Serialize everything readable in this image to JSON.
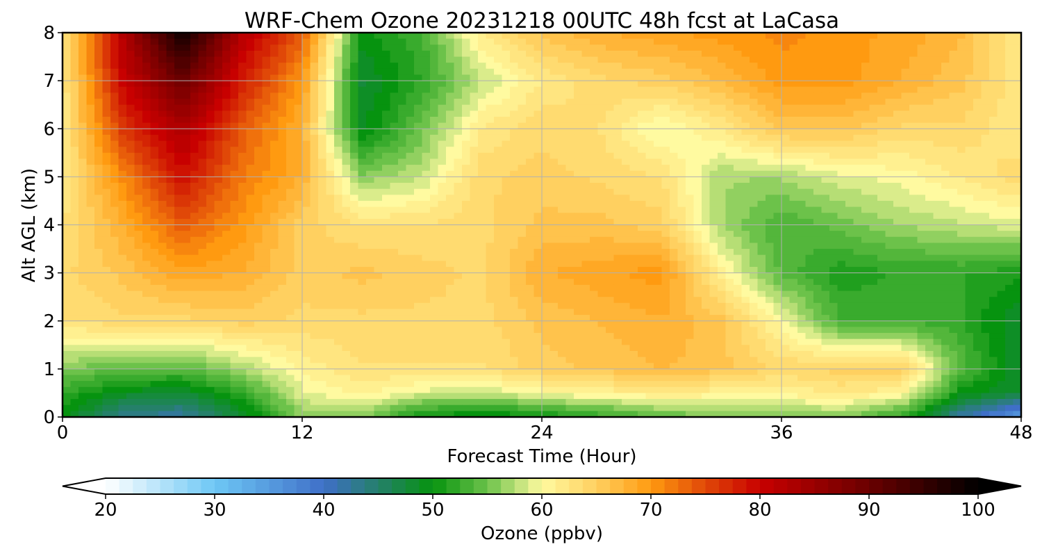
{
  "chart_data": {
    "type": "heatmap",
    "title": "WRF-Chem Ozone  20231218 00UTC 48h fcst at LaCasa",
    "xlabel": "Forecast Time (Hour)",
    "ylabel": "Alt AGL (km)",
    "xlim": [
      0,
      48
    ],
    "ylim": [
      0,
      8
    ],
    "x_ticks": [
      "0",
      "12",
      "24",
      "36",
      "48"
    ],
    "y_ticks": [
      "0",
      "1",
      "2",
      "3",
      "4",
      "5",
      "6",
      "7",
      "8"
    ],
    "grid": true,
    "x": [
      0,
      3,
      6,
      9,
      12,
      15,
      18,
      21,
      24,
      27,
      30,
      33,
      36,
      39,
      42,
      45,
      48
    ],
    "y": [
      0,
      0.5,
      1,
      2,
      3,
      4,
      5,
      6,
      7,
      8
    ],
    "z": [
      [
        50,
        43,
        42,
        48,
        56,
        56,
        50,
        49,
        50,
        52,
        54,
        56,
        56,
        56,
        52,
        42,
        34
      ],
      [
        52,
        49,
        48,
        52,
        59,
        61,
        59,
        58,
        60,
        61,
        62,
        61,
        61,
        62,
        61,
        50,
        48
      ],
      [
        56,
        54,
        54,
        57,
        61,
        63,
        63,
        63,
        65,
        66,
        67,
        66,
        64,
        65,
        65,
        54,
        48
      ],
      [
        63,
        64,
        64,
        65,
        64,
        64,
        64,
        64,
        66,
        67,
        68,
        66,
        60,
        53,
        53,
        52,
        48
      ],
      [
        64,
        66,
        69,
        68,
        65,
        66,
        65,
        64,
        68,
        69,
        70,
        61,
        54,
        51,
        52,
        52,
        51
      ],
      [
        63,
        68,
        74,
        70,
        65,
        63,
        63,
        64,
        66,
        66,
        65,
        57,
        53,
        55,
        57,
        58,
        59
      ],
      [
        62,
        71,
        79,
        72,
        68,
        56,
        58,
        64,
        65,
        64,
        63,
        57,
        57,
        59,
        60,
        62,
        64
      ],
      [
        62,
        76,
        83,
        74,
        68,
        49,
        55,
        62,
        64,
        63,
        59,
        62,
        66,
        66,
        64,
        64,
        62
      ],
      [
        62,
        80,
        90,
        78,
        70,
        48,
        52,
        58,
        62,
        64,
        65,
        67,
        70,
        70,
        68,
        66,
        62
      ],
      [
        63,
        82,
        99,
        82,
        74,
        50,
        53,
        62,
        66,
        68,
        69,
        70,
        71,
        70,
        69,
        67,
        62
      ]
    ],
    "colorbar": {
      "label": "Ozone  (ppbv)",
      "min": 20,
      "max": 100,
      "ticks": [
        "20",
        "30",
        "40",
        "50",
        "60",
        "70",
        "80",
        "90",
        "100"
      ],
      "extend": "both",
      "stops": [
        {
          "v": 20,
          "color": "#ffffff"
        },
        {
          "v": 30,
          "color": "#6ec8f5"
        },
        {
          "v": 40,
          "color": "#3f6fc8"
        },
        {
          "v": 45,
          "color": "#25806a"
        },
        {
          "v": 50,
          "color": "#06930f"
        },
        {
          "v": 55,
          "color": "#6cc24a"
        },
        {
          "v": 60,
          "color": "#fffaa0"
        },
        {
          "v": 65,
          "color": "#ffd060"
        },
        {
          "v": 70,
          "color": "#ff9a10"
        },
        {
          "v": 75,
          "color": "#e04808"
        },
        {
          "v": 80,
          "color": "#c80000"
        },
        {
          "v": 90,
          "color": "#6a0000"
        },
        {
          "v": 100,
          "color": "#000000"
        }
      ]
    }
  }
}
